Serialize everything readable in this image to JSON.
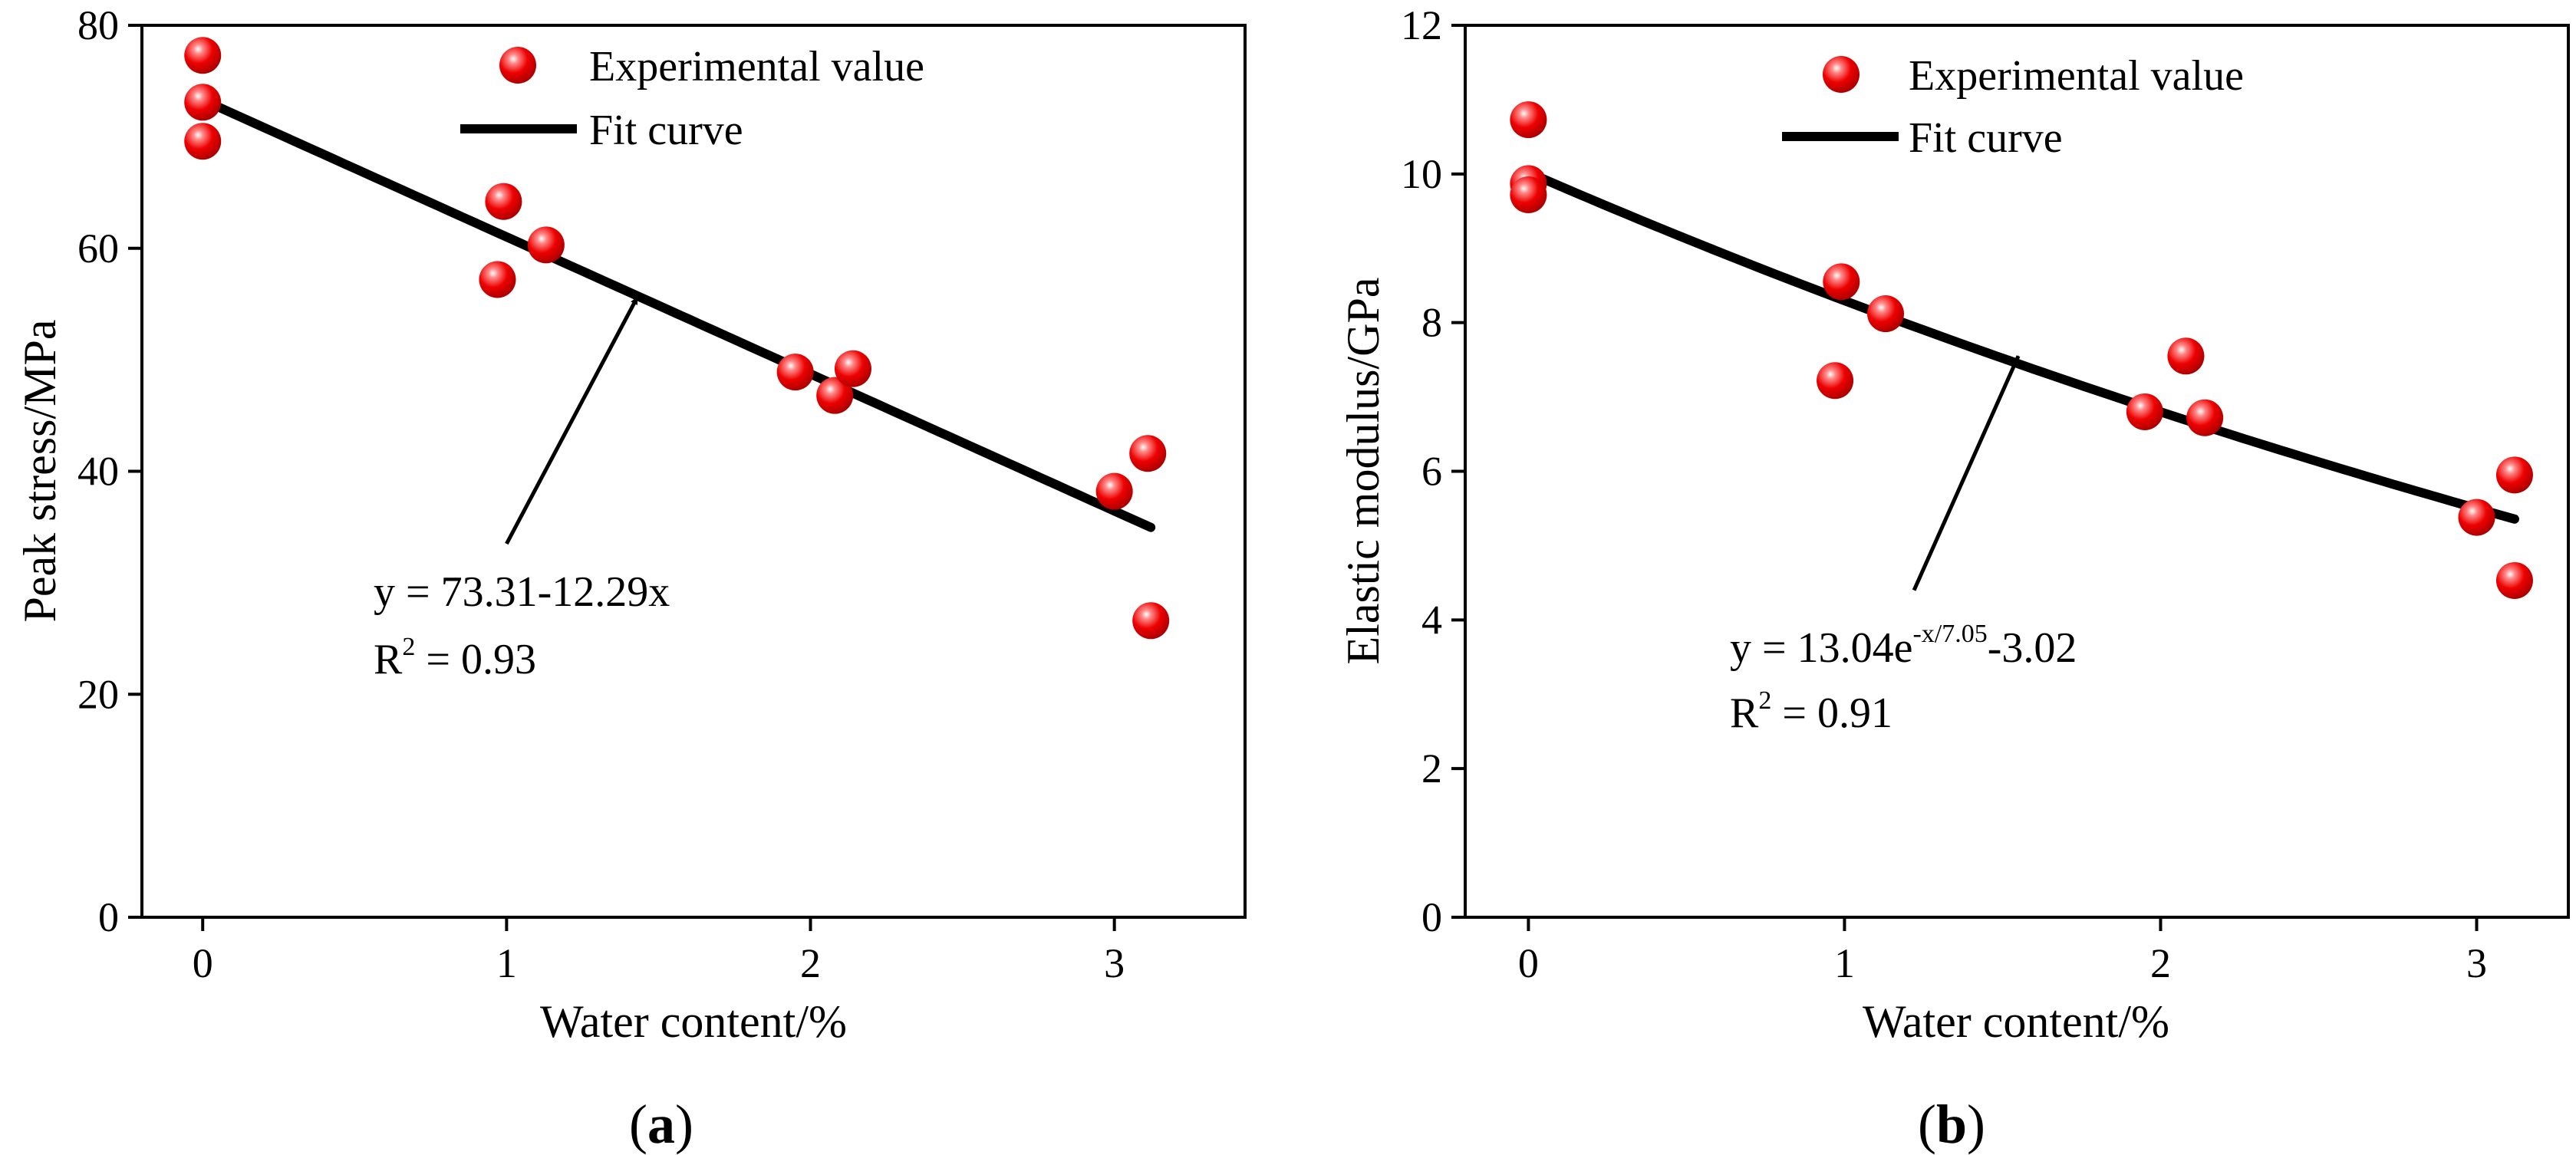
{
  "colors": {
    "point": "#ee0000",
    "fit": "#000000",
    "axis": "#000000"
  },
  "chart_data": [
    {
      "panel": "a",
      "panel_label": "a",
      "type": "scatter",
      "xlabel": "Water content/%",
      "ylabel": "Peak stress/MPa",
      "xlim": [
        -0.2,
        3.43
      ],
      "ylim": [
        0,
        80
      ],
      "xticks": [
        0,
        1,
        2,
        3
      ],
      "yticks": [
        0,
        20,
        40,
        60,
        80
      ],
      "legend": {
        "position": "top-right",
        "points_label": "Experimental value",
        "fit_label": "Fit curve"
      },
      "points": [
        {
          "x": 0.0,
          "y": 77.3
        },
        {
          "x": 0.0,
          "y": 73.1
        },
        {
          "x": 0.0,
          "y": 69.6
        },
        {
          "x": 0.97,
          "y": 57.2
        },
        {
          "x": 0.99,
          "y": 64.2
        },
        {
          "x": 1.13,
          "y": 60.3
        },
        {
          "x": 1.95,
          "y": 48.9
        },
        {
          "x": 2.08,
          "y": 46.8
        },
        {
          "x": 2.14,
          "y": 49.2
        },
        {
          "x": 3.0,
          "y": 38.2
        },
        {
          "x": 3.11,
          "y": 41.6
        },
        {
          "x": 3.12,
          "y": 26.6
        }
      ],
      "fit": {
        "model": "linear",
        "a": 73.31,
        "b": -12.29,
        "x_range": [
          0,
          3.12
        ]
      },
      "equation": {
        "line1": "y = 73.31-12.29x",
        "r2_prefix": "R",
        "r2_sup": "2",
        "r2_value": " = 0.93"
      },
      "arrow": {
        "from": [
          1.0,
          33.5
        ],
        "to": [
          1.43,
          55.6
        ]
      }
    },
    {
      "panel": "b",
      "panel_label": "b",
      "type": "scatter",
      "xlabel": "Water content/%",
      "ylabel": "Elastic modulus/GPa",
      "xlim": [
        -0.2,
        3.29
      ],
      "ylim": [
        0,
        12
      ],
      "xticks": [
        0,
        1,
        2,
        3
      ],
      "yticks": [
        0,
        2,
        4,
        6,
        8,
        10,
        12
      ],
      "legend": {
        "position": "top-right",
        "points_label": "Experimental value",
        "fit_label": "Fit curve"
      },
      "points": [
        {
          "x": 0.0,
          "y": 10.73
        },
        {
          "x": 0.0,
          "y": 9.87
        },
        {
          "x": 0.0,
          "y": 9.72
        },
        {
          "x": 0.97,
          "y": 7.22
        },
        {
          "x": 0.99,
          "y": 8.55
        },
        {
          "x": 1.13,
          "y": 8.12
        },
        {
          "x": 1.95,
          "y": 6.8
        },
        {
          "x": 2.08,
          "y": 7.55
        },
        {
          "x": 2.14,
          "y": 6.72
        },
        {
          "x": 3.0,
          "y": 5.38
        },
        {
          "x": 3.12,
          "y": 5.95
        },
        {
          "x": 3.12,
          "y": 4.53
        }
      ],
      "fit": {
        "model": "exponential",
        "A": 13.04,
        "t": 7.05,
        "c": -3.02,
        "x_range": [
          0,
          3.12
        ]
      },
      "equation": {
        "line1_prefix": "y = 13.04e",
        "line1_sup": "-x/7.05",
        "line1_suffix": "-3.02",
        "r2_prefix": "R",
        "r2_sup": "2",
        "r2_value": " = 0.91"
      },
      "arrow": {
        "from": [
          1.22,
          4.4
        ],
        "to": [
          1.55,
          7.55
        ]
      }
    }
  ]
}
